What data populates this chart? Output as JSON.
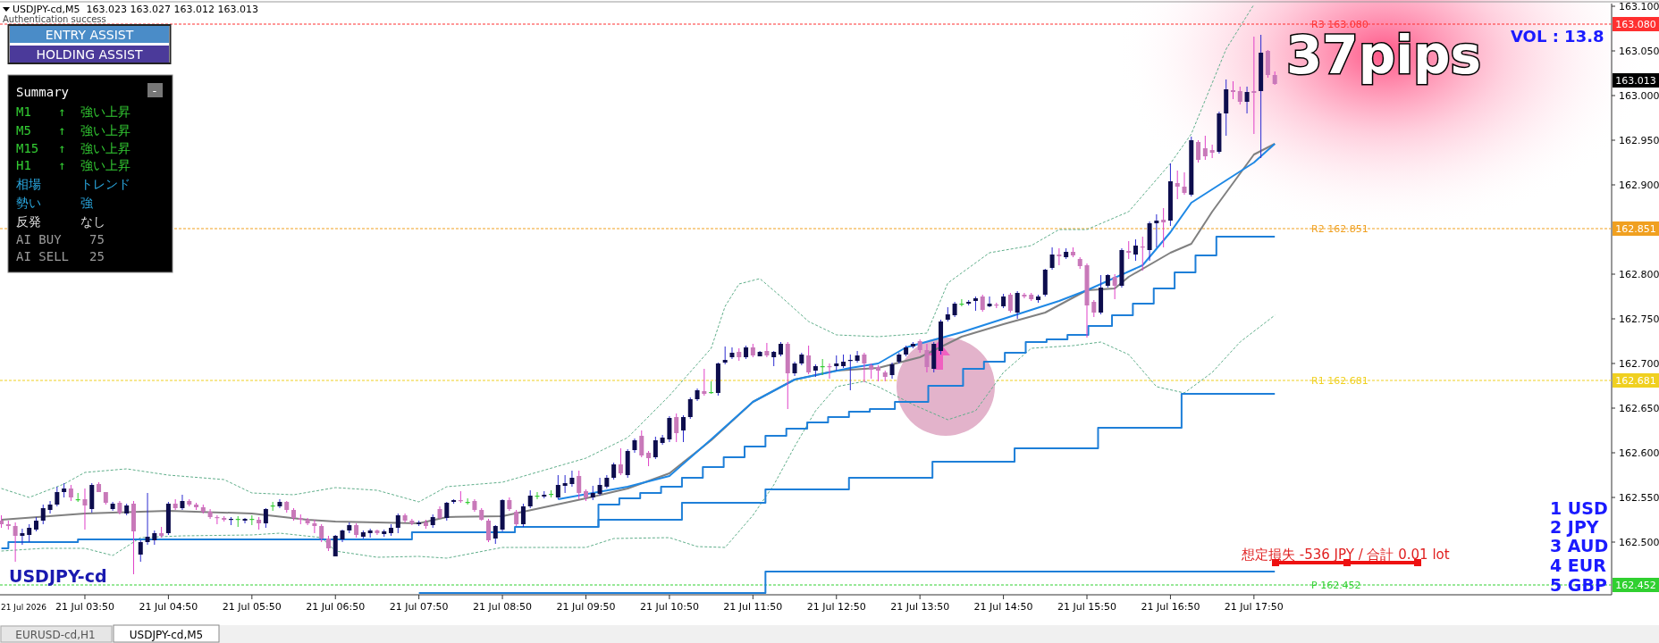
{
  "chart_data": {
    "type": "candlestick",
    "title": "USDJPY-cd,M5  163.023 163.027 163.012 163.013",
    "x": [
      "2026-07-21T02:50",
      "2026-07-21T02:55",
      "2026-07-21T03:00",
      "2026-07-21T03:05",
      "2026-07-21T03:10",
      "2026-07-21T03:15",
      "2026-07-21T03:20",
      "2026-07-21T03:25",
      "2026-07-21T03:30",
      "2026-07-21T03:35",
      "2026-07-21T03:40",
      "2026-07-21T03:45",
      "2026-07-21T03:50",
      "2026-07-21T03:55",
      "2026-07-21T04:00",
      "2026-07-21T04:05",
      "2026-07-21T04:10",
      "2026-07-21T04:15",
      "2026-07-21T04:20",
      "2026-07-21T04:25",
      "2026-07-21T04:30",
      "2026-07-21T04:35",
      "2026-07-21T04:40",
      "2026-07-21T04:45",
      "2026-07-21T04:50",
      "2026-07-21T04:55",
      "2026-07-21T05:00",
      "2026-07-21T05:05",
      "2026-07-21T05:10",
      "2026-07-21T05:15",
      "2026-07-21T05:20",
      "2026-07-21T05:25",
      "2026-07-21T05:30",
      "2026-07-21T05:35",
      "2026-07-21T05:40",
      "2026-07-21T05:45",
      "2026-07-21T05:50",
      "2026-07-21T05:55",
      "2026-07-21T06:00",
      "2026-07-21T06:05",
      "2026-07-21T06:10",
      "2026-07-21T06:15",
      "2026-07-21T06:20",
      "2026-07-21T06:25",
      "2026-07-21T06:30",
      "2026-07-21T06:35",
      "2026-07-21T06:40",
      "2026-07-21T06:45",
      "2026-07-21T06:50",
      "2026-07-21T06:55",
      "2026-07-21T07:00",
      "2026-07-21T07:05",
      "2026-07-21T07:10",
      "2026-07-21T07:15",
      "2026-07-21T07:20",
      "2026-07-21T07:25",
      "2026-07-21T07:30",
      "2026-07-21T07:35",
      "2026-07-21T07:40",
      "2026-07-21T07:45",
      "2026-07-21T07:50",
      "2026-07-21T07:55",
      "2026-07-21T08:00",
      "2026-07-21T08:05",
      "2026-07-21T08:10",
      "2026-07-21T08:15",
      "2026-07-21T08:20",
      "2026-07-21T08:25",
      "2026-07-21T08:30",
      "2026-07-21T08:35",
      "2026-07-21T08:40",
      "2026-07-21T08:45",
      "2026-07-21T08:50",
      "2026-07-21T08:55",
      "2026-07-21T09:00",
      "2026-07-21T09:05",
      "2026-07-21T09:10",
      "2026-07-21T09:15",
      "2026-07-21T09:20",
      "2026-07-21T09:25",
      "2026-07-21T09:30",
      "2026-07-21T09:35",
      "2026-07-21T09:40",
      "2026-07-21T09:45",
      "2026-07-21T09:50",
      "2026-07-21T09:55",
      "2026-07-21T10:00",
      "2026-07-21T10:05",
      "2026-07-21T10:10",
      "2026-07-21T10:15",
      "2026-07-21T10:20",
      "2026-07-21T10:25",
      "2026-07-21T10:30",
      "2026-07-21T10:35",
      "2026-07-21T10:40",
      "2026-07-21T10:45",
      "2026-07-21T10:50",
      "2026-07-21T10:55",
      "2026-07-21T11:00",
      "2026-07-21T11:05",
      "2026-07-21T11:10",
      "2026-07-21T11:15",
      "2026-07-21T11:20",
      "2026-07-21T11:25",
      "2026-07-21T11:30",
      "2026-07-21T11:35",
      "2026-07-21T11:40",
      "2026-07-21T11:45",
      "2026-07-21T11:50",
      "2026-07-21T11:55",
      "2026-07-21T12:00",
      "2026-07-21T12:05",
      "2026-07-21T12:10",
      "2026-07-21T12:15",
      "2026-07-21T12:20",
      "2026-07-21T12:25",
      "2026-07-21T12:30",
      "2026-07-21T12:35",
      "2026-07-21T12:40",
      "2026-07-21T12:45",
      "2026-07-21T12:50",
      "2026-07-21T12:55",
      "2026-07-21T13:00",
      "2026-07-21T13:05",
      "2026-07-21T13:10",
      "2026-07-21T13:15",
      "2026-07-21T13:20",
      "2026-07-21T13:25",
      "2026-07-21T13:30",
      "2026-07-21T13:35",
      "2026-07-21T13:40",
      "2026-07-21T13:45",
      "2026-07-21T13:50",
      "2026-07-21T13:55",
      "2026-07-21T14:00",
      "2026-07-21T14:05",
      "2026-07-21T14:10",
      "2026-07-21T14:15",
      "2026-07-21T14:20",
      "2026-07-21T14:25",
      "2026-07-21T14:30",
      "2026-07-21T14:35",
      "2026-07-21T14:40",
      "2026-07-21T14:45",
      "2026-07-21T14:50",
      "2026-07-21T14:55",
      "2026-07-21T15:00",
      "2026-07-21T15:05",
      "2026-07-21T15:10",
      "2026-07-21T15:15",
      "2026-07-21T15:20",
      "2026-07-21T15:25",
      "2026-07-21T15:30",
      "2026-07-21T15:35",
      "2026-07-21T15:40",
      "2026-07-21T15:45",
      "2026-07-21T15:50",
      "2026-07-21T15:55",
      "2026-07-21T16:00",
      "2026-07-21T16:05",
      "2026-07-21T16:10",
      "2026-07-21T16:15",
      "2026-07-21T16:20",
      "2026-07-21T16:25",
      "2026-07-21T16:30",
      "2026-07-21T16:35",
      "2026-07-21T16:40",
      "2026-07-21T16:45",
      "2026-07-21T16:50",
      "2026-07-21T16:55",
      "2026-07-21T17:00",
      "2026-07-21T17:05",
      "2026-07-21T17:10",
      "2026-07-21T17:15",
      "2026-07-21T17:20",
      "2026-07-21T17:25",
      "2026-07-21T17:30",
      "2026-07-21T17:35",
      "2026-07-21T17:40",
      "2026-07-21T17:45",
      "2026-07-21T17:50",
      "2026-07-21T17:55",
      "2026-07-21T18:00",
      "2026-07-21T18:05"
    ],
    "ohlc": [
      [
        162.524,
        162.53,
        162.516,
        162.52
      ],
      [
        162.52,
        162.524,
        162.514,
        162.518
      ],
      [
        162.518,
        162.522,
        162.478,
        162.507
      ],
      [
        162.507,
        162.515,
        162.497,
        162.51
      ],
      [
        162.508,
        162.52,
        162.5,
        162.516
      ],
      [
        162.514,
        162.528,
        162.512,
        162.524
      ],
      [
        162.524,
        162.542,
        162.52,
        162.538
      ],
      [
        162.536,
        162.546,
        162.532,
        162.542
      ],
      [
        162.542,
        162.562,
        162.54,
        162.556
      ],
      [
        162.556,
        162.566,
        162.55,
        162.56
      ],
      [
        162.56,
        162.564,
        162.546,
        162.55
      ],
      [
        162.548,
        162.555,
        162.545,
        162.548
      ],
      [
        162.548,
        162.56,
        162.514,
        162.541
      ],
      [
        162.537,
        162.566,
        162.533,
        162.564
      ],
      [
        162.565,
        162.567,
        162.556,
        162.556
      ],
      [
        162.556,
        162.556,
        162.542,
        162.544
      ],
      [
        162.537,
        162.545,
        162.535,
        162.543
      ],
      [
        162.544,
        162.546,
        162.531,
        162.533
      ],
      [
        162.532,
        162.543,
        162.53,
        162.541
      ],
      [
        162.543,
        162.546,
        162.464,
        162.512
      ],
      [
        162.486,
        162.502,
        162.478,
        162.5
      ],
      [
        162.5,
        162.555,
        162.497,
        162.506
      ],
      [
        162.502,
        162.513,
        162.497,
        162.51
      ],
      [
        162.51,
        162.517,
        162.505,
        162.507
      ],
      [
        162.51,
        162.545,
        162.508,
        162.543
      ],
      [
        162.543,
        162.548,
        162.536,
        162.538
      ],
      [
        162.538,
        162.553,
        162.536,
        162.546
      ],
      [
        162.546,
        162.548,
        162.54,
        162.542
      ],
      [
        162.542,
        162.544,
        162.536,
        162.539
      ],
      [
        162.539,
        162.542,
        162.532,
        162.534
      ],
      [
        162.534,
        162.537,
        162.526,
        162.528
      ],
      [
        162.528,
        162.53,
        162.52,
        162.527
      ],
      [
        162.527,
        162.529,
        162.523,
        162.525
      ],
      [
        162.525,
        162.528,
        162.519,
        162.526
      ],
      [
        162.526,
        162.529,
        162.517,
        162.526
      ],
      [
        162.524,
        162.527,
        162.521,
        162.526
      ],
      [
        162.526,
        162.53,
        162.519,
        162.526
      ],
      [
        162.525,
        162.528,
        162.514,
        162.521
      ],
      [
        162.521,
        162.538,
        162.516,
        162.537
      ],
      [
        162.541,
        162.545,
        162.535,
        162.541
      ],
      [
        162.54,
        162.548,
        162.538,
        162.545
      ],
      [
        162.545,
        162.546,
        162.533,
        162.536
      ],
      [
        162.536,
        162.538,
        162.524,
        162.527
      ],
      [
        162.527,
        162.531,
        162.52,
        162.525
      ],
      [
        162.525,
        162.527,
        162.519,
        162.521
      ],
      [
        162.521,
        162.525,
        162.51,
        162.518
      ],
      [
        162.518,
        162.52,
        162.5,
        162.504
      ],
      [
        162.504,
        162.507,
        162.49,
        162.493
      ],
      [
        162.484,
        162.508,
        162.484,
        162.507
      ],
      [
        162.503,
        162.514,
        162.5,
        162.513
      ],
      [
        162.513,
        162.522,
        162.51,
        162.519
      ],
      [
        162.519,
        162.521,
        162.505,
        162.508
      ],
      [
        162.506,
        162.513,
        162.504,
        162.511
      ],
      [
        162.51,
        162.515,
        162.505,
        162.513
      ],
      [
        162.513,
        162.514,
        162.508,
        162.51
      ],
      [
        162.509,
        162.514,
        162.506,
        162.512
      ],
      [
        162.51,
        162.52,
        162.507,
        162.516
      ],
      [
        162.516,
        162.532,
        162.51,
        162.53
      ],
      [
        162.53,
        162.532,
        162.522,
        162.524
      ],
      [
        162.524,
        162.526,
        162.519,
        162.521
      ],
      [
        162.52,
        162.524,
        162.518,
        162.522
      ],
      [
        162.522,
        162.525,
        162.515,
        162.518
      ],
      [
        162.519,
        162.531,
        162.516,
        162.528
      ],
      [
        162.537,
        162.54,
        162.526,
        162.527
      ],
      [
        162.527,
        162.545,
        162.524,
        162.544
      ],
      [
        162.545,
        162.548,
        162.543,
        162.547
      ],
      [
        162.547,
        162.557,
        162.544,
        162.546
      ],
      [
        162.545,
        162.549,
        162.542,
        162.545
      ],
      [
        162.546,
        162.548,
        162.534,
        162.536
      ],
      [
        162.536,
        162.538,
        162.524,
        162.525
      ],
      [
        162.524,
        162.526,
        162.5,
        162.502
      ],
      [
        162.504,
        162.519,
        162.498,
        162.518
      ],
      [
        162.514,
        162.548,
        162.512,
        162.547
      ],
      [
        162.547,
        162.55,
        162.535,
        162.537
      ],
      [
        162.534,
        162.536,
        162.518,
        162.52
      ],
      [
        162.52,
        162.543,
        162.517,
        162.54
      ],
      [
        162.54,
        162.558,
        162.538,
        162.552
      ],
      [
        162.552,
        162.556,
        162.548,
        162.552
      ],
      [
        162.551,
        162.557,
        162.549,
        162.553
      ],
      [
        162.554,
        162.558,
        162.55,
        162.554
      ],
      [
        162.55,
        162.575,
        162.548,
        162.564
      ],
      [
        162.563,
        162.575,
        162.555,
        162.566
      ],
      [
        162.565,
        162.58,
        162.562,
        162.572
      ],
      [
        162.574,
        162.58,
        162.548,
        162.555
      ],
      [
        162.557,
        162.559,
        162.546,
        162.55
      ],
      [
        162.55,
        162.563,
        162.547,
        162.555
      ],
      [
        162.554,
        162.572,
        162.552,
        162.564
      ],
      [
        162.562,
        162.575,
        162.56,
        162.572
      ],
      [
        162.572,
        162.589,
        162.57,
        162.587
      ],
      [
        162.587,
        162.605,
        162.575,
        162.577
      ],
      [
        162.575,
        162.604,
        162.572,
        162.602
      ],
      [
        162.603,
        162.616,
        162.6,
        162.614
      ],
      [
        162.619,
        162.625,
        162.595,
        162.597
      ],
      [
        162.6,
        162.602,
        162.585,
        162.594
      ],
      [
        162.595,
        162.618,
        162.593,
        162.614
      ],
      [
        162.611,
        162.62,
        162.609,
        162.617
      ],
      [
        162.615,
        162.641,
        162.612,
        162.639
      ],
      [
        162.64,
        162.644,
        162.612,
        162.622
      ],
      [
        162.625,
        162.642,
        162.612,
        162.64
      ],
      [
        162.64,
        162.662,
        162.638,
        162.66
      ],
      [
        162.66,
        162.672,
        162.658,
        162.67
      ],
      [
        162.669,
        162.694,
        162.664,
        162.666
      ],
      [
        162.668,
        162.68,
        162.666,
        162.668
      ],
      [
        162.667,
        162.701,
        162.664,
        162.7
      ],
      [
        162.701,
        162.719,
        162.699,
        162.704
      ],
      [
        162.707,
        162.718,
        162.705,
        162.712
      ],
      [
        162.713,
        162.717,
        162.703,
        162.707
      ],
      [
        162.707,
        162.72,
        162.705,
        162.718
      ],
      [
        162.718,
        162.722,
        162.707,
        162.709
      ],
      [
        162.708,
        162.714,
        162.708,
        162.713
      ],
      [
        162.714,
        162.723,
        162.707,
        162.709
      ],
      [
        162.707,
        162.714,
        162.697,
        162.713
      ],
      [
        162.71,
        162.724,
        162.708,
        162.722
      ],
      [
        162.722,
        162.724,
        162.649,
        162.689
      ],
      [
        162.689,
        162.702,
        162.686,
        162.7
      ],
      [
        162.7,
        162.712,
        162.698,
        162.71
      ],
      [
        162.709,
        162.72,
        162.688,
        162.69
      ],
      [
        162.692,
        162.699,
        162.685,
        162.697
      ],
      [
        162.697,
        162.705,
        162.687,
        162.697
      ],
      [
        162.697,
        162.7,
        162.683,
        162.696
      ],
      [
        162.697,
        162.709,
        162.692,
        162.7
      ],
      [
        162.697,
        162.71,
        162.695,
        162.702
      ],
      [
        162.703,
        162.71,
        162.67,
        162.704
      ],
      [
        162.703,
        162.714,
        162.701,
        162.709
      ],
      [
        162.71,
        162.712,
        162.679,
        162.7
      ],
      [
        162.698,
        162.7,
        162.683,
        162.693
      ],
      [
        162.696,
        162.698,
        162.68,
        162.692
      ],
      [
        162.69,
        162.692,
        162.68,
        162.685
      ],
      [
        162.687,
        162.701,
        162.683,
        162.699
      ],
      [
        162.702,
        162.712,
        162.7,
        162.71
      ],
      [
        162.71,
        162.72,
        162.708,
        162.718
      ],
      [
        162.719,
        162.724,
        162.717,
        162.722
      ],
      [
        162.725,
        162.727,
        162.712,
        162.715
      ],
      [
        162.715,
        162.722,
        162.69,
        162.696
      ],
      [
        162.694,
        162.724,
        162.69,
        162.722
      ],
      [
        162.714,
        162.749,
        162.71,
        162.747
      ],
      [
        162.749,
        162.763,
        162.747,
        162.755
      ],
      [
        162.754,
        162.769,
        162.752,
        162.767
      ],
      [
        162.767,
        162.772,
        162.764,
        162.767
      ],
      [
        162.767,
        162.771,
        162.765,
        162.769
      ],
      [
        162.77,
        162.775,
        162.759,
        162.773
      ],
      [
        162.775,
        162.777,
        162.758,
        162.76
      ],
      [
        162.764,
        162.775,
        162.763,
        162.767
      ],
      [
        162.766,
        162.768,
        162.762,
        162.765
      ],
      [
        162.764,
        162.778,
        162.762,
        162.775
      ],
      [
        162.777,
        162.779,
        162.757,
        162.759
      ],
      [
        162.757,
        162.781,
        162.75,
        162.779
      ],
      [
        162.777,
        162.779,
        162.773,
        162.775
      ],
      [
        162.777,
        162.779,
        162.77,
        162.772
      ],
      [
        162.771,
        162.777,
        162.768,
        162.775
      ],
      [
        162.777,
        162.806,
        162.775,
        162.805
      ],
      [
        162.807,
        162.83,
        162.805,
        162.822
      ],
      [
        162.822,
        162.829,
        162.81,
        162.82
      ],
      [
        162.819,
        162.829,
        162.817,
        162.825
      ],
      [
        162.825,
        162.83,
        162.819,
        162.821
      ],
      [
        162.817,
        162.819,
        162.806,
        162.809
      ],
      [
        162.81,
        162.812,
        162.729,
        162.765
      ],
      [
        162.769,
        162.771,
        162.752,
        162.757
      ],
      [
        162.757,
        162.799,
        162.755,
        162.785
      ],
      [
        162.787,
        162.8,
        162.785,
        162.799
      ],
      [
        162.797,
        162.8,
        162.772,
        162.787
      ],
      [
        162.787,
        162.829,
        162.785,
        162.827
      ],
      [
        162.826,
        162.837,
        162.817,
        162.824
      ],
      [
        162.822,
        162.839,
        162.815,
        162.832
      ],
      [
        162.831,
        162.842,
        162.804,
        162.83
      ],
      [
        162.827,
        162.859,
        162.815,
        162.857
      ],
      [
        162.857,
        162.867,
        162.83,
        162.86
      ],
      [
        162.861,
        162.874,
        162.83,
        162.858
      ],
      [
        162.86,
        162.924,
        162.854,
        162.904
      ],
      [
        162.902,
        162.916,
        162.884,
        162.898
      ],
      [
        162.898,
        162.914,
        162.889,
        162.891
      ],
      [
        162.889,
        162.954,
        162.887,
        162.95
      ],
      [
        162.948,
        162.95,
        162.925,
        162.928
      ],
      [
        162.941,
        162.955,
        162.928,
        162.932
      ],
      [
        162.939,
        162.945,
        162.93,
        162.936
      ],
      [
        162.937,
        162.982,
        162.935,
        162.98
      ],
      [
        162.98,
        163.018,
        162.955,
        163.007
      ],
      [
        163.006,
        163.016,
        162.996,
        163.004
      ],
      [
        163.005,
        163.01,
        162.99,
        162.993
      ],
      [
        162.993,
        163.01,
        162.98,
        163.004
      ],
      [
        163.005,
        163.066,
        162.957,
        163.003
      ],
      [
        163.005,
        163.068,
        162.93,
        163.048
      ],
      [
        163.05,
        163.051,
        163.02,
        163.023
      ],
      [
        163.023,
        163.027,
        163.012,
        163.013
      ]
    ],
    "series": [
      {
        "type": "line",
        "color": "#808080",
        "x": [
          "2026-07-21T02:50",
          "2026-07-21T03:50",
          "2026-07-21T04:50",
          "2026-07-21T05:50",
          "2026-07-21T06:30",
          "2026-07-21T06:50",
          "2026-07-21T07:50",
          "2026-07-21T08:10",
          "2026-07-21T08:50",
          "2026-07-21T09:50",
          "2026-07-21T10:20",
          "2026-07-21T10:50",
          "2026-07-21T11:20",
          "2026-07-21T11:50",
          "2026-07-21T12:20",
          "2026-07-21T12:50",
          "2026-07-21T13:20",
          "2026-07-21T13:50",
          "2026-07-21T14:20",
          "2026-07-21T14:50",
          "2026-07-21T15:20",
          "2026-07-21T15:50",
          "2026-07-21T16:10",
          "2026-07-21T16:20",
          "2026-07-21T16:50",
          "2026-07-21T17:05",
          "2026-07-21T17:20",
          "2026-07-21T17:50",
          "2026-07-21T18:05"
        ],
        "values": [
          162.525,
          162.532,
          162.535,
          162.532,
          162.525,
          162.523,
          162.521,
          162.528,
          162.529,
          162.549,
          162.56,
          162.577,
          162.614,
          162.657,
          162.682,
          162.692,
          162.695,
          162.707,
          162.73,
          162.744,
          162.757,
          162.782,
          162.784,
          162.797,
          162.824,
          162.834,
          162.87,
          162.934,
          162.946
        ]
      },
      {
        "type": "line",
        "color": "#1e88e5",
        "x": [
          "2026-07-21T09:30",
          "2026-07-21T10:20",
          "2026-07-21T10:50",
          "2026-07-21T11:20",
          "2026-07-21T11:50",
          "2026-07-21T12:20",
          "2026-07-21T13:00",
          "2026-07-21T13:20",
          "2026-07-21T13:40",
          "2026-07-21T14:20",
          "2026-07-21T14:50",
          "2026-07-21T15:30",
          "2026-07-21T15:50",
          "2026-07-21T16:30",
          "2026-07-21T16:50",
          "2026-07-21T17:05",
          "2026-07-21T17:50",
          "2026-07-21T18:05"
        ],
        "values": [
          162.548,
          162.562,
          162.574,
          162.615,
          162.657,
          162.682,
          162.695,
          162.7,
          162.718,
          162.735,
          162.75,
          162.77,
          162.782,
          162.81,
          162.847,
          162.88,
          162.925,
          162.946
        ]
      },
      {
        "type": "line",
        "color": "#5fae8a",
        "line_style": "dashed",
        "x": [
          "2026-07-21T02:50",
          "2026-07-21T03:10",
          "2026-07-21T03:35",
          "2026-07-21T03:50",
          "2026-07-21T04:20",
          "2026-07-21T04:50",
          "2026-07-21T05:30",
          "2026-07-21T05:50",
          "2026-07-21T06:20",
          "2026-07-21T06:50",
          "2026-07-21T07:20",
          "2026-07-21T07:50",
          "2026-07-21T08:10",
          "2026-07-21T08:50",
          "2026-07-21T09:50",
          "2026-07-21T10:20",
          "2026-07-21T10:50",
          "2026-07-21T11:20",
          "2026-07-21T11:30",
          "2026-07-21T11:40",
          "2026-07-21T11:55",
          "2026-07-21T12:10",
          "2026-07-21T12:30",
          "2026-07-21T12:50",
          "2026-07-21T13:20",
          "2026-07-21T13:55",
          "2026-07-21T14:10",
          "2026-07-21T14:40",
          "2026-07-21T15:10",
          "2026-07-21T15:30",
          "2026-07-21T15:50",
          "2026-07-21T16:20",
          "2026-07-21T16:50",
          "2026-07-21T17:05",
          "2026-07-21T17:30",
          "2026-07-21T17:50"
        ],
        "values": [
          162.56,
          162.55,
          162.565,
          162.578,
          162.582,
          162.575,
          162.57,
          162.555,
          162.553,
          162.561,
          162.558,
          162.545,
          162.562,
          162.567,
          162.594,
          162.617,
          162.664,
          162.717,
          162.764,
          162.789,
          162.795,
          162.775,
          162.747,
          162.732,
          162.73,
          162.734,
          162.79,
          162.824,
          162.832,
          162.85,
          162.85,
          162.87,
          162.924,
          162.957,
          163.052,
          163.102
        ]
      },
      {
        "type": "line",
        "color": "#5fae8a",
        "line_style": "dashed",
        "x": [
          "2026-07-21T02:50",
          "2026-07-21T03:20",
          "2026-07-21T03:50",
          "2026-07-21T04:10",
          "2026-07-21T04:30",
          "2026-07-21T05:00",
          "2026-07-21T05:50",
          "2026-07-21T06:10",
          "2026-07-21T06:40",
          "2026-07-21T06:50",
          "2026-07-21T07:20",
          "2026-07-21T07:50",
          "2026-07-21T08:10",
          "2026-07-21T08:50",
          "2026-07-21T09:20",
          "2026-07-21T09:50",
          "2026-07-21T10:10",
          "2026-07-21T10:50",
          "2026-07-21T11:10",
          "2026-07-21T11:30",
          "2026-07-21T11:50",
          "2026-07-21T12:05",
          "2026-07-21T12:20",
          "2026-07-21T12:35",
          "2026-07-21T12:50",
          "2026-07-21T13:10",
          "2026-07-21T13:20",
          "2026-07-21T13:45",
          "2026-07-21T14:10",
          "2026-07-21T14:30",
          "2026-07-21T14:50",
          "2026-07-21T15:10",
          "2026-07-21T15:40",
          "2026-07-21T16:00",
          "2026-07-21T16:20",
          "2026-07-21T16:40",
          "2026-07-21T17:00",
          "2026-07-21T17:20",
          "2026-07-21T17:40",
          "2026-07-21T18:05"
        ],
        "values": [
          162.49,
          162.493,
          162.493,
          162.485,
          162.505,
          162.507,
          162.508,
          162.51,
          162.505,
          162.49,
          162.483,
          162.484,
          162.482,
          162.494,
          162.494,
          162.494,
          162.504,
          162.505,
          162.495,
          162.494,
          162.53,
          162.564,
          162.607,
          162.647,
          162.674,
          162.68,
          162.674,
          162.654,
          162.637,
          162.647,
          162.69,
          162.717,
          162.72,
          162.724,
          162.71,
          162.674,
          162.667,
          162.69,
          162.724,
          162.754
        ]
      },
      {
        "type": "step",
        "color": "#1e7fd8",
        "x": [
          "2026-07-21T02:50",
          "2026-07-21T02:55",
          "2026-07-21T03:45",
          "2026-07-21T07:45",
          "2026-07-21T08:59",
          "2026-07-21T09:59",
          "2026-07-21T10:14",
          "2026-07-21T10:29",
          "2026-07-21T10:44",
          "2026-07-21T10:59",
          "2026-07-21T11:14",
          "2026-07-21T11:29",
          "2026-07-21T11:44",
          "2026-07-21T11:59",
          "2026-07-21T12:14",
          "2026-07-21T12:29",
          "2026-07-21T12:44",
          "2026-07-21T12:59",
          "2026-07-21T13:14",
          "2026-07-21T13:32",
          "2026-07-21T13:56",
          "2026-07-21T14:21",
          "2026-07-21T14:36",
          "2026-07-21T14:51",
          "2026-07-21T15:06",
          "2026-07-21T15:21",
          "2026-07-21T15:36",
          "2026-07-21T15:51",
          "2026-07-21T16:08",
          "2026-07-21T16:23",
          "2026-07-21T16:38",
          "2026-07-21T16:53",
          "2026-07-21T17:08",
          "2026-07-21T17:23",
          "2026-07-21T18:05"
        ],
        "values": [
          162.493,
          162.5,
          162.503,
          162.511,
          162.517,
          162.542,
          162.549,
          162.555,
          162.562,
          162.572,
          162.584,
          162.595,
          162.607,
          162.619,
          162.627,
          162.634,
          162.64,
          162.646,
          162.649,
          162.657,
          162.675,
          162.694,
          162.702,
          162.712,
          162.724,
          162.727,
          162.732,
          162.742,
          162.754,
          162.767,
          162.784,
          162.802,
          162.821,
          162.842,
          162.842
        ]
      },
      {
        "type": "step",
        "color": "#1e7fd8",
        "x": [
          "2026-07-21T08:59",
          "2026-07-21T09:59",
          "2026-07-21T10:59",
          "2026-07-21T11:59",
          "2026-07-21T12:59",
          "2026-07-21T13:59",
          "2026-07-21T14:58",
          "2026-07-21T15:58",
          "2026-07-21T16:58",
          "2026-07-21T18:05"
        ],
        "values": [
          162.517,
          162.525,
          162.544,
          162.559,
          162.572,
          162.59,
          162.605,
          162.628,
          162.666,
          162.666
        ]
      },
      {
        "type": "step",
        "color": "#1e7fd8",
        "x": [
          "2026-07-21T07:50",
          "2026-07-21T11:59",
          "2026-07-21T18:05"
        ],
        "values": [
          162.443,
          162.467,
          162.467
        ]
      }
    ],
    "xlim": [
      "2026-07-21T02:49",
      "2026-07-21T22:07"
    ],
    "ylim": [
      162.441,
      163.107
    ],
    "xticks": [
      {
        "value": "2026-07-21T02:50",
        "label": "21 Jul 2026"
      },
      {
        "value": "2026-07-21T03:50",
        "label": "21 Jul 03:50"
      },
      {
        "value": "2026-07-21T04:50",
        "label": "21 Jul 04:50"
      },
      {
        "value": "2026-07-21T05:50",
        "label": "21 Jul 05:50"
      },
      {
        "value": "2026-07-21T06:50",
        "label": "21 Jul 06:50"
      },
      {
        "value": "2026-07-21T07:50",
        "label": "21 Jul 07:50"
      },
      {
        "value": "2026-07-21T08:50",
        "label": "21 Jul 08:50"
      },
      {
        "value": "2026-07-21T09:50",
        "label": "21 Jul 09:50"
      },
      {
        "value": "2026-07-21T10:50",
        "label": "21 Jul 10:50"
      },
      {
        "value": "2026-07-21T11:50",
        "label": "21 Jul 11:50"
      },
      {
        "value": "2026-07-21T12:50",
        "label": "21 Jul 12:50"
      },
      {
        "value": "2026-07-21T13:50",
        "label": "21 Jul 13:50"
      },
      {
        "value": "2026-07-21T14:50",
        "label": "21 Jul 14:50"
      },
      {
        "value": "2026-07-21T15:50",
        "label": "21 Jul 15:50"
      },
      {
        "value": "2026-07-21T16:50",
        "label": "21 Jul 16:50"
      },
      {
        "value": "2026-07-21T17:50",
        "label": "21 Jul 17:50"
      }
    ],
    "yticks": [
      {
        "value": 162.5,
        "label": "162.500"
      },
      {
        "value": 162.55,
        "label": "162.550"
      },
      {
        "value": 162.6,
        "label": "162.600"
      },
      {
        "value": 162.65,
        "label": "162.650"
      },
      {
        "value": 162.7,
        "label": "162.700"
      },
      {
        "value": 162.75,
        "label": "162.750"
      },
      {
        "value": 162.8,
        "label": "162.800"
      },
      {
        "value": 162.9,
        "label": "162.900"
      },
      {
        "value": 162.95,
        "label": "162.950"
      },
      {
        "value": 163.0,
        "label": "163.000"
      },
      {
        "value": 163.05,
        "label": "163.050"
      },
      {
        "value": 163.1,
        "label": "163.100"
      }
    ],
    "ref_lines": [
      {
        "axis": "y",
        "value": 163.08,
        "label": "R3 163.080",
        "color": "#ff3030",
        "line_style": "dashed"
      },
      {
        "axis": "y",
        "value": 162.851,
        "label": "R2 162.851",
        "color": "#f0a020",
        "line_style": "dashed"
      },
      {
        "axis": "y",
        "value": 162.681,
        "label": "R1 162.681",
        "color": "#f0d020",
        "line_style": "dashed"
      },
      {
        "axis": "y",
        "value": 162.452,
        "label": "P 162.452",
        "color": "#30d030",
        "line_style": "dashed"
      }
    ],
    "annotations": [
      "Authentication success",
      "ENTRY ASSIST",
      "HOLDING ASSIST",
      "Summary",
      "-",
      "M1",
      "↑",
      "強い上昇",
      "M5",
      "↑",
      "強い上昇",
      "M15",
      "↑",
      "強い上昇",
      "H1",
      "↑",
      "強い上昇",
      "相場",
      "トレンド",
      "勢い",
      "強",
      "反発",
      "なし",
      "AI BUY",
      "75",
      "AI SELL",
      "25",
      "37pips",
      "VOL : 13.8",
      "1 USD",
      "2 JPY",
      "3 AUD",
      "4 EUR",
      "5 GBP",
      "想定損失 -536 JPY / 合計 0.01 lot",
      "USDJPY-cd",
      "EURUSD-cd,H1",
      "USDJPY-cd,M5",
      "163.013",
      "163.080",
      "162.851",
      "162.681",
      "162.452"
    ]
  }
}
